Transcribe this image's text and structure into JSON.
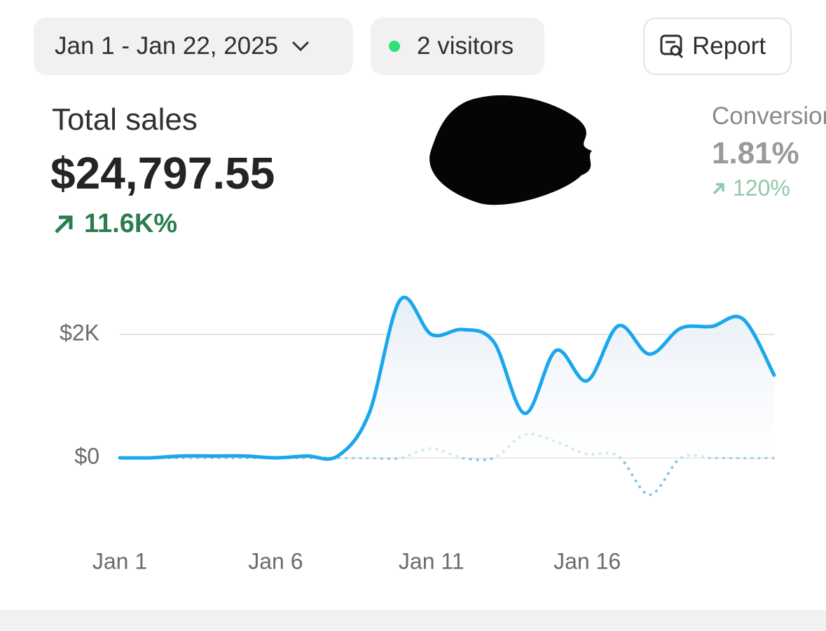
{
  "header": {
    "date_range": "Jan 1 - Jan 22, 2025",
    "visitors": "2 visitors",
    "report": "Report"
  },
  "metrics": [
    {
      "label": "Total sales",
      "value": "$24,797.55",
      "change": "11.6K%"
    },
    {
      "label": "Conversion rate",
      "value": "1.81%",
      "change": "120%"
    }
  ],
  "chart_data": {
    "type": "line",
    "categories": [
      "Jan 1",
      null,
      null,
      null,
      null,
      "Jan 6",
      null,
      null,
      null,
      null,
      "Jan 11",
      null,
      null,
      null,
      null,
      "Jan 16",
      null,
      null,
      null,
      null,
      null,
      null
    ],
    "series": [
      {
        "color": "#1aa7ec",
        "style": "solid",
        "values": [
          0,
          0,
          30,
          30,
          30,
          0,
          30,
          30,
          720,
          2560,
          2000,
          2080,
          1880,
          720,
          1740,
          1250,
          2140,
          1680,
          2100,
          2130,
          2250,
          1340
        ]
      },
      {
        "color": "#7cc4e6",
        "style": "dotted",
        "values": [
          0,
          0,
          0,
          0,
          0,
          0,
          0,
          0,
          0,
          0,
          150,
          0,
          0,
          375,
          260,
          60,
          30,
          -600,
          0,
          0,
          0,
          0
        ]
      }
    ],
    "ylim": [
      -1000,
      2700
    ],
    "yticks": [
      {
        "value": 0,
        "label": "$0"
      },
      {
        "value": 2000,
        "label": "$2K"
      }
    ],
    "grid": true
  }
}
